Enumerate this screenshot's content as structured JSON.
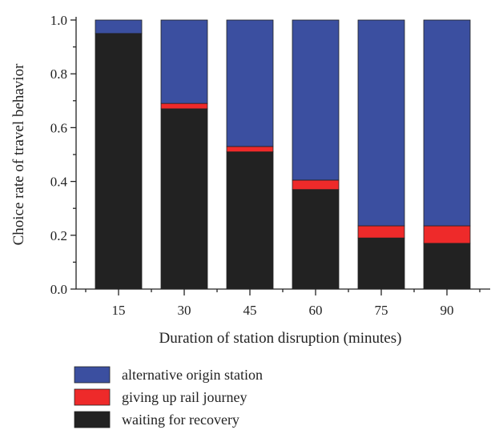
{
  "chart_data": {
    "type": "bar",
    "stacked": true,
    "categories": [
      "15",
      "30",
      "45",
      "60",
      "75",
      "90"
    ],
    "series": [
      {
        "name": "waiting for recovery",
        "color": "#222222",
        "values": [
          0.95,
          0.67,
          0.51,
          0.37,
          0.19,
          0.17
        ]
      },
      {
        "name": "giving up rail journey",
        "color": "#ee2a2a",
        "values": [
          0.0,
          0.02,
          0.02,
          0.035,
          0.045,
          0.065
        ]
      },
      {
        "name": "alternative origin station",
        "color": "#3b4fa0",
        "values": [
          0.05,
          0.31,
          0.47,
          0.595,
          0.765,
          0.765
        ]
      }
    ],
    "xlabel": "Duration of station disruption (minutes)",
    "ylabel": "Choice rate of travel behavior",
    "ylim": [
      0.0,
      1.0
    ],
    "yticks": [
      0.0,
      0.2,
      0.4,
      0.6,
      0.8,
      1.0
    ],
    "ytick_labels": [
      "0.0",
      "0.2",
      "0.4",
      "0.6",
      "0.8",
      "1.0"
    ],
    "grid": false,
    "legend_position": "bottom-left, below the chart",
    "legend_order": [
      "alternative origin station",
      "giving up rail journey",
      "waiting for recovery"
    ]
  }
}
